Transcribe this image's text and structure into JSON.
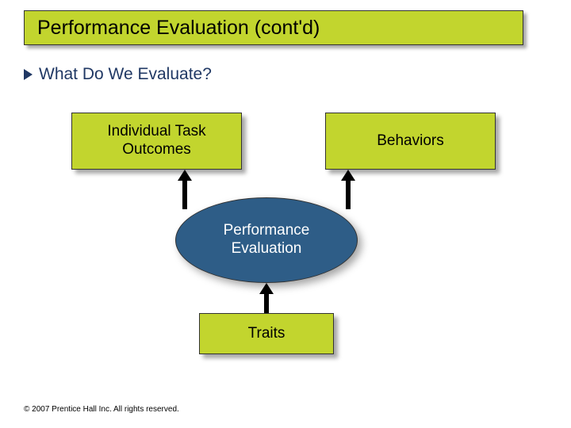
{
  "slide": {
    "title": "Performance Evaluation (cont'd)",
    "subheading": "What Do We Evaluate?",
    "footer": "© 2007 Prentice Hall Inc. All rights reserved."
  },
  "diagram": {
    "type": "flowchart",
    "nodes": {
      "topLeft": {
        "label": "Individual Task\nOutcomes",
        "shape": "rect",
        "fill": "#c2d52e",
        "text_color": "#000000",
        "fontsize": 19
      },
      "topRight": {
        "label": "Behaviors",
        "shape": "rect",
        "fill": "#c2d52e",
        "text_color": "#000000",
        "fontsize": 19
      },
      "center": {
        "label": "Performance\nEvaluation",
        "shape": "ellipse",
        "fill": "#2e5d87",
        "text_color": "#ffffff",
        "fontsize": 19
      },
      "bottom": {
        "label": "Traits",
        "shape": "rect",
        "fill": "#c2d52e",
        "text_color": "#000000",
        "fontsize": 19
      }
    },
    "edges": [
      {
        "from": "topLeft",
        "to": "center",
        "style": "arrow-up",
        "color": "#000000"
      },
      {
        "from": "topRight",
        "to": "center",
        "style": "arrow-up",
        "color": "#000000"
      },
      {
        "from": "bottom",
        "to": "center",
        "style": "arrow-up",
        "color": "#000000"
      }
    ],
    "background_color": "#ffffff",
    "shadow_color": "rgba(0,0,0,0.35)",
    "accent_color": "#203864"
  }
}
